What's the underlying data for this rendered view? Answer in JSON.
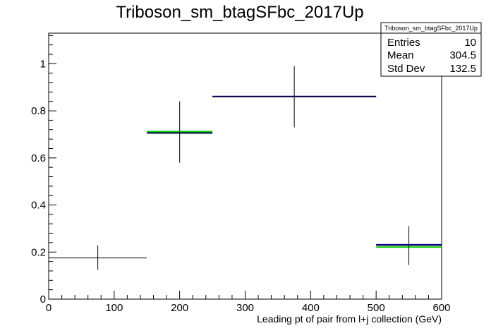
{
  "chart_data": {
    "type": "histogram",
    "title": "Triboson_sm_btagSFbc_2017Up",
    "xlabel": "Leading pt of pair from l+j collection (GeV)",
    "ylabel": "",
    "xlim": [
      0,
      600
    ],
    "ylim": [
      0,
      1.13
    ],
    "xticks": [
      0,
      100,
      200,
      300,
      400,
      500,
      600
    ],
    "xtick_labels": [
      "0",
      "100",
      "200",
      "300",
      "400",
      "500",
      "600"
    ],
    "yticks": [
      0,
      0.2,
      0.4,
      0.6,
      0.8,
      1.0
    ],
    "ytick_labels": [
      "0",
      "0.2",
      "0.4",
      "0.6",
      "0.8",
      "1"
    ],
    "grid": false,
    "legend": "none",
    "series": [
      {
        "color": "#000000",
        "bins": [
          {
            "xlow": 0,
            "xhigh": 150,
            "y": 0.175,
            "err_low": 0.125,
            "err_high": 0.228
          },
          {
            "xlow": 150,
            "xhigh": 250,
            "y": 0.705,
            "err_low": 0.58,
            "err_high": 0.84
          },
          {
            "xlow": 250,
            "xhigh": 500,
            "y": 0.86,
            "err_low": 0.73,
            "err_high": 0.99
          },
          {
            "xlow": 500,
            "xhigh": 600,
            "y": 0.228,
            "err_low": 0.145,
            "err_high": 0.31
          }
        ]
      },
      {
        "color": "#00cc00",
        "bins": [
          {
            "xlow": 150,
            "xhigh": 250,
            "y": 0.712
          },
          {
            "xlow": 500,
            "xhigh": 600,
            "y": 0.221
          }
        ]
      },
      {
        "color": "#000099",
        "bins": [
          {
            "xlow": 150,
            "xhigh": 250,
            "y": 0.706
          },
          {
            "xlow": 250,
            "xhigh": 500,
            "y": 0.861
          },
          {
            "xlow": 500,
            "xhigh": 600,
            "y": 0.231
          }
        ]
      }
    ],
    "stats_box": {
      "title": "Triboson_sm_btagSFbc_2017Up",
      "rows": [
        {
          "label": "Entries",
          "value": "10"
        },
        {
          "label": "Mean",
          "value": "304.5"
        },
        {
          "label": "Std Dev",
          "value": "132.5"
        }
      ]
    }
  }
}
